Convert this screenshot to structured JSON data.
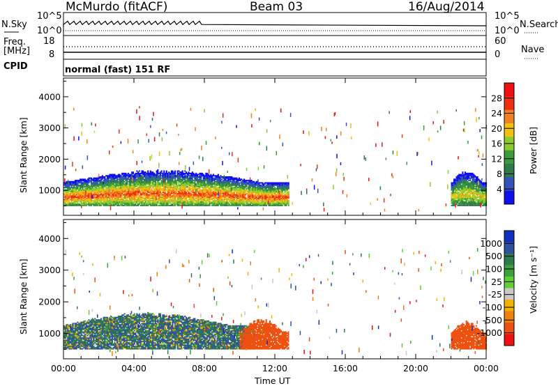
{
  "header": {
    "station": "McMurdo (fitACF)",
    "beam": "Beam 03",
    "date": "16/Aug/2014"
  },
  "status_panel": {
    "left_top": "N.Sky",
    "left_top_ticks": [
      "10^5",
      "10^0"
    ],
    "right_top": "N.Search",
    "right_top_ticks": [
      "10^5",
      "10^0"
    ],
    "left_mid": [
      "Freq.",
      "[MHz]"
    ],
    "left_mid_ticks": [
      "18",
      "8"
    ],
    "right_mid": "Nave",
    "right_mid_ticks": [
      "60",
      "0"
    ],
    "cpid_label": "CPID",
    "mode_text": "normal (fast) 151 RF"
  },
  "colors": {
    "power_scale": [
      "#1010ee",
      "#3355bb",
      "#2f7a4a",
      "#3c9a3c",
      "#8acc30",
      "#f2c010",
      "#f28020",
      "#ee3010",
      "#ee1010"
    ],
    "velocity_scale": [
      "#1030c0",
      "#3050a0",
      "#2f7a4a",
      "#3ca03c",
      "#60d030",
      "#c8c8c8",
      "#f2b000",
      "#ee8010",
      "#ee5010",
      "#ee1010"
    ]
  },
  "chart_data": [
    {
      "type": "heatmap",
      "name": "power",
      "xlabel": "Time UT",
      "ylabel": "Slant Range [km]",
      "colorbar_label": "Power [dB]",
      "colorbar_ticks": [
        "28",
        "24",
        "20",
        "16",
        "12",
        "8",
        "4"
      ],
      "colorbar_range": [
        0,
        32
      ],
      "ylim": [
        200,
        4600
      ],
      "y_ticks": [
        "1000",
        "2000",
        "3000",
        "4000"
      ],
      "xlim": [
        0,
        24
      ],
      "x_ticks": [
        "00:00",
        "04:00",
        "08:00",
        "12:00",
        "16:00",
        "20:00",
        "00:00"
      ],
      "echo_regions": [
        {
          "t_start": 0.0,
          "t_end": 12.8,
          "range_low_km": 500,
          "range_high_km": 1650,
          "power_db_core": 26
        },
        {
          "t_start": 22.0,
          "t_end": 24.0,
          "range_low_km": 500,
          "range_high_km": 1650,
          "power_db_core": 20
        }
      ]
    },
    {
      "type": "heatmap",
      "name": "velocity",
      "xlabel": "Time UT",
      "ylabel": "Slant Range [km]",
      "colorbar_label": "Velocity [m s⁻¹]",
      "colorbar_ticks": [
        "1000",
        "500",
        "100",
        "25",
        "-25",
        "-100",
        "-500",
        "-1000"
      ],
      "ylim": [
        200,
        4600
      ],
      "y_ticks": [
        "1000",
        "2000",
        "3000",
        "4000"
      ],
      "xlim": [
        0,
        24
      ],
      "x_ticks": [
        "00:00",
        "04:00",
        "08:00",
        "12:00",
        "16:00",
        "20:00",
        "00:00"
      ],
      "echo_regions": [
        {
          "t_start": 0.0,
          "t_end": 10.8,
          "range_low_km": 500,
          "range_high_km": 1650,
          "velocity_ms_core": 60
        },
        {
          "t_start": 10.0,
          "t_end": 12.8,
          "range_low_km": 500,
          "range_high_km": 1450,
          "velocity_ms_core": -150
        },
        {
          "t_start": 22.0,
          "t_end": 24.0,
          "range_low_km": 500,
          "range_high_km": 1400,
          "velocity_ms_core": -150
        }
      ]
    }
  ]
}
